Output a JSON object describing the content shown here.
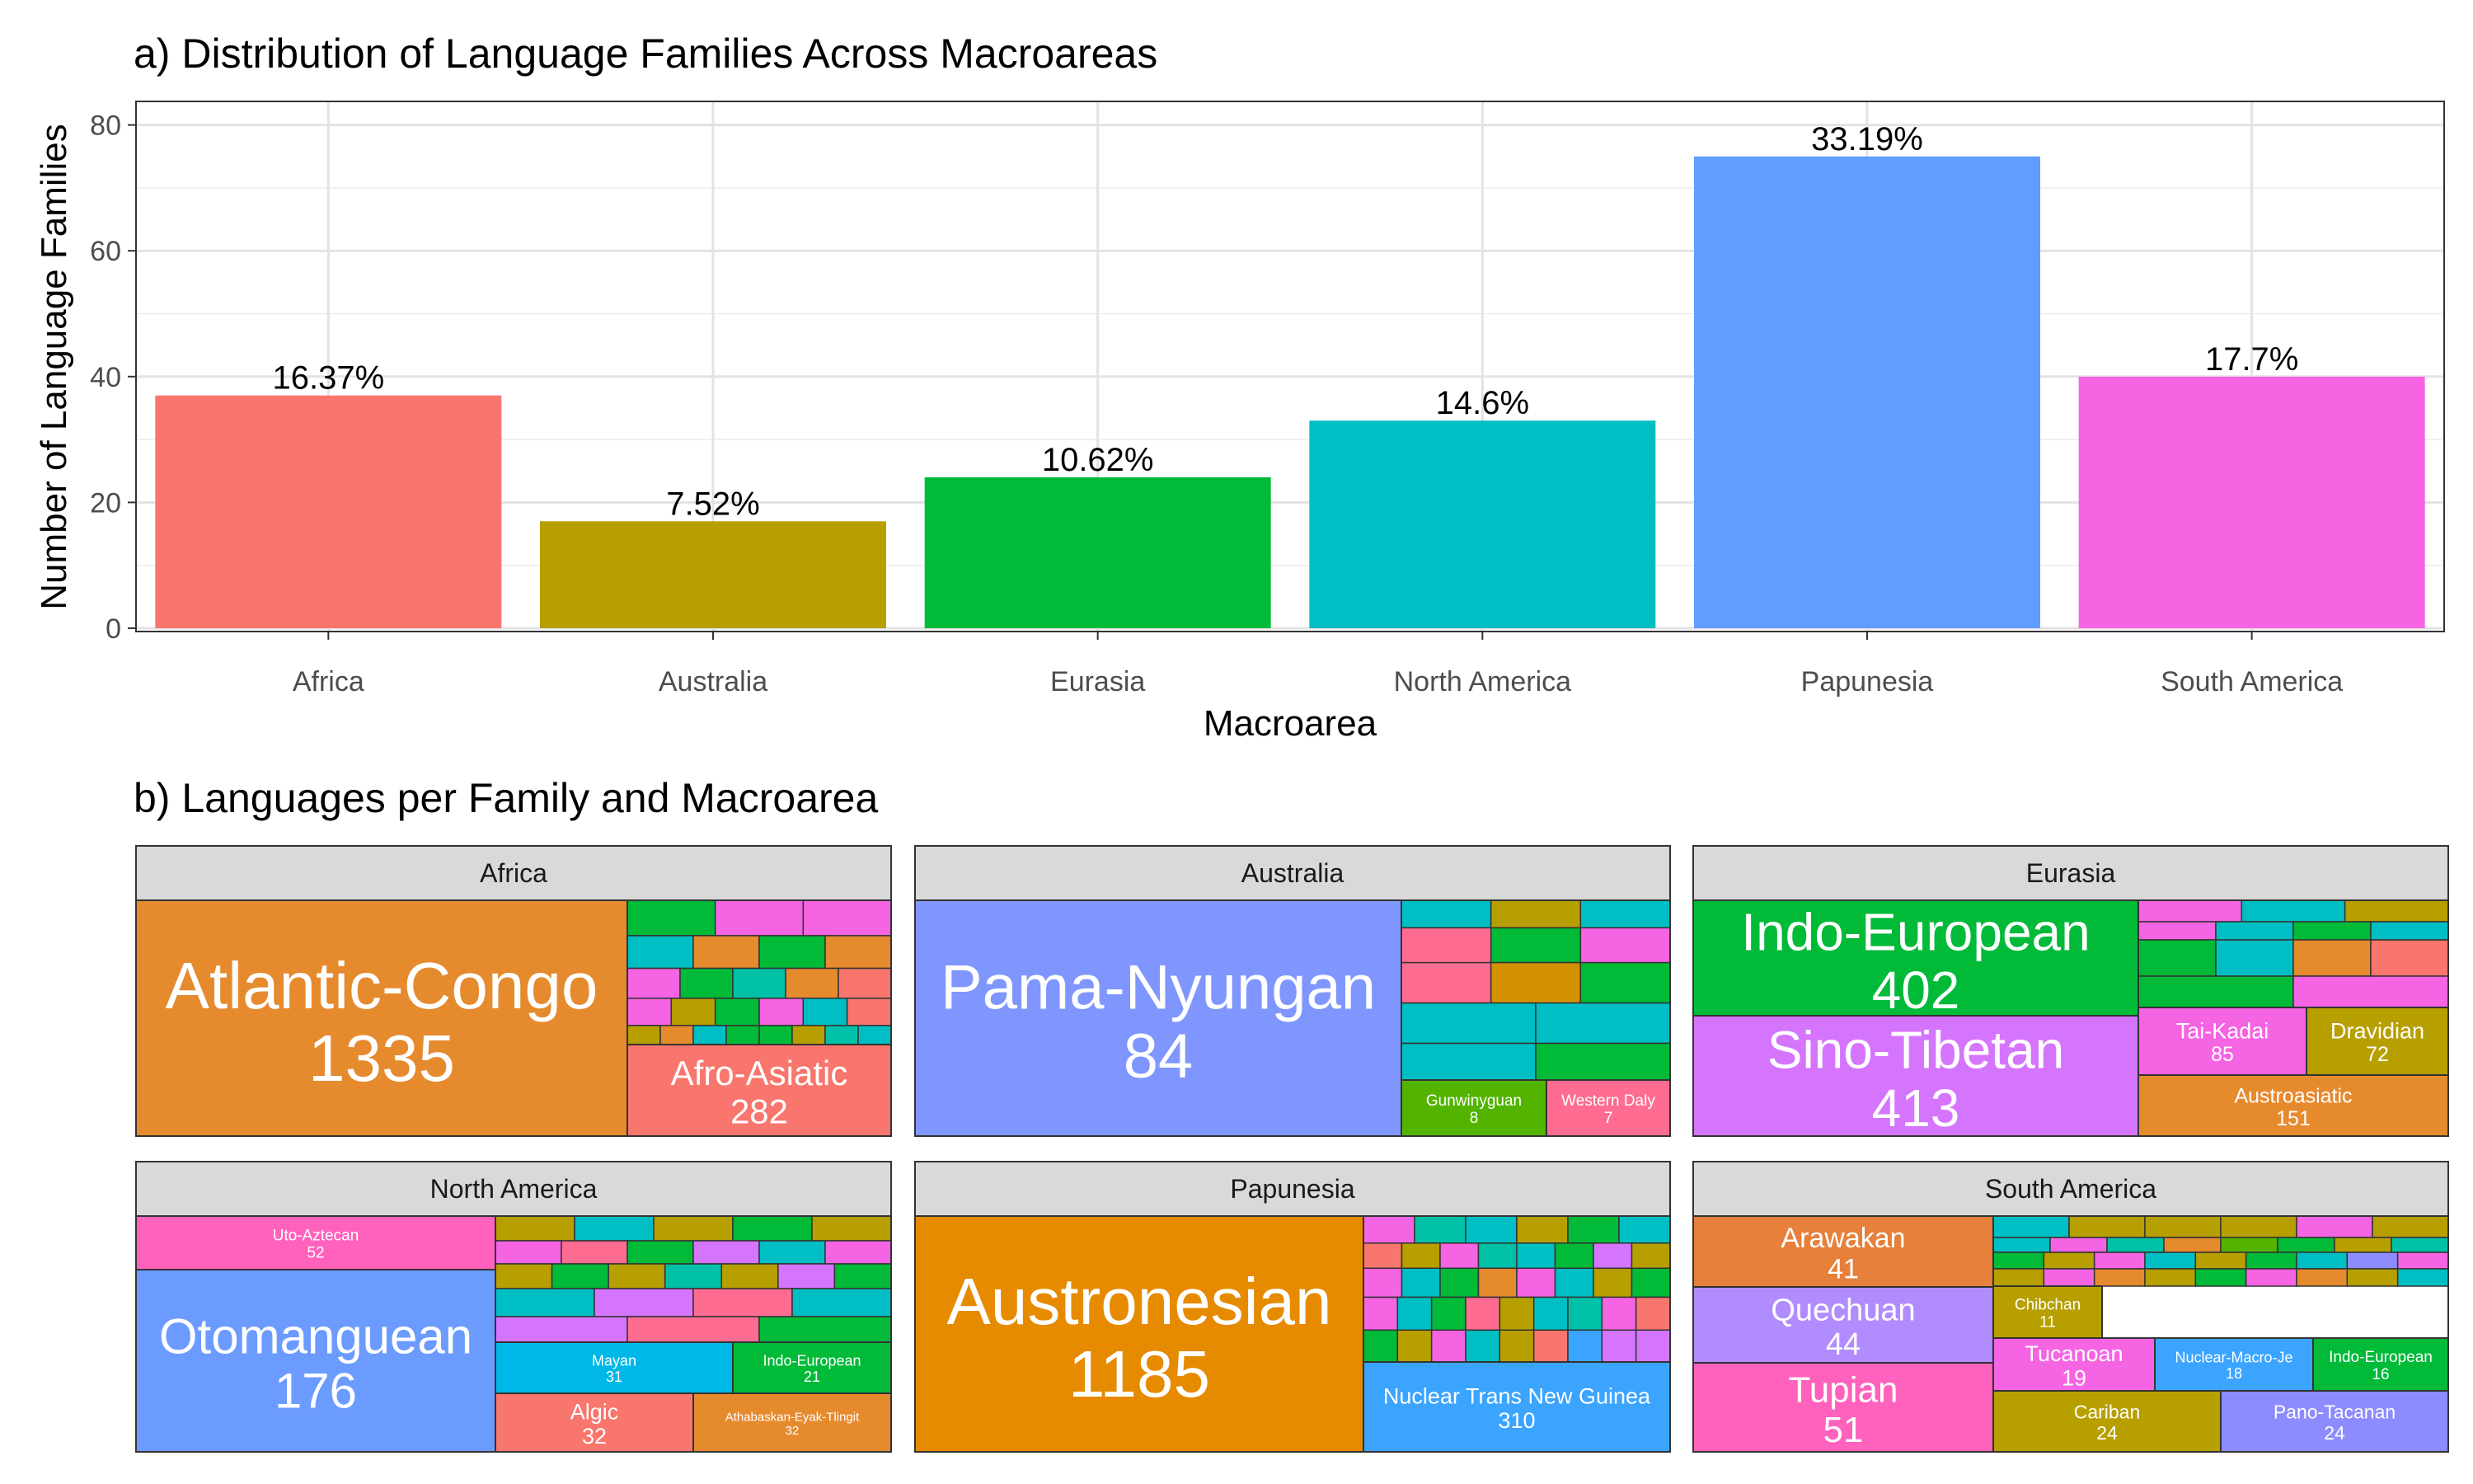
{
  "chart_data": [
    {
      "type": "bar",
      "title": "a) Distribution of Language Families Across Macroareas",
      "xlabel": "Macroarea",
      "ylabel": "Number of Language Families",
      "ylim": [
        0,
        84
      ],
      "yticks": [
        "0",
        "20",
        "40",
        "60",
        "80"
      ],
      "grid": true,
      "categories": [
        "Africa",
        "Australia",
        "Eurasia",
        "North America",
        "Papunesia",
        "South America"
      ],
      "values": [
        37,
        17,
        24,
        33,
        75,
        40
      ],
      "labels": [
        "16.37%",
        "7.52%",
        "10.62%",
        "14.6%",
        "33.19%",
        "17.7%"
      ],
      "colors": [
        "#F8766D",
        "#B79F00",
        "#00BA38",
        "#00BFC4",
        "#619CFF",
        "#F564E3"
      ]
    },
    {
      "type": "treemap",
      "title": "b) Languages per Family and Macroarea",
      "panels": [
        {
          "name": "Africa",
          "labeled": [
            {
              "name": "Atlantic-Congo",
              "value": "1335",
              "color": "#E68A2E"
            },
            {
              "name": "Afro-Asiatic",
              "value": "282",
              "color": "#F8766D"
            }
          ],
          "small_colors": [
            "#00BA38",
            "#F564E3",
            "#F564E3",
            "#00BFC4",
            "#E68A2E",
            "#00BA38",
            "#E68A2E",
            "#F564E3",
            "#00BA38",
            "#00C1A7",
            "#E68A2E",
            "#F8766D",
            "#F564E3",
            "#B79F00",
            "#00BA38",
            "#F564E3",
            "#00BFC4",
            "#F8766D",
            "#B79F00",
            "#E68A2E",
            "#00BFC4",
            "#00BA38",
            "#00BA38",
            "#B79F00",
            "#00C1A7",
            "#00BFC4",
            "#00BFC4",
            "#B79F00"
          ]
        },
        {
          "name": "Australia",
          "labeled": [
            {
              "name": "Pama-Nyungan",
              "value": "84",
              "color": "#7F96FF"
            },
            {
              "name": "Gunwinyguan",
              "value": "8",
              "color": "#53B400"
            },
            {
              "name": "Western Daly",
              "value": "7",
              "color": "#FF6C91"
            }
          ],
          "small_colors": [
            "#00BFC4",
            "#B79F00",
            "#00BFC4",
            "#FF6C91",
            "#00BA38",
            "#F564E3",
            "#FF6C91",
            "#D39200",
            "#00BA38",
            "#00BFC4",
            "#00BFC4",
            "#00BFC4",
            "#00BA38"
          ]
        },
        {
          "name": "Eurasia",
          "labeled": [
            {
              "name": "Indo-European",
              "value": "402",
              "color": "#00BA38"
            },
            {
              "name": "Sino-Tibetan",
              "value": "413",
              "color": "#D575FE"
            },
            {
              "name": "Tai-Kadai",
              "value": "85",
              "color": "#F564E3"
            },
            {
              "name": "Dravidian",
              "value": "72",
              "color": "#B79F00"
            },
            {
              "name": "Austroasiatic",
              "value": "151",
              "color": "#E68A2E"
            }
          ],
          "small_colors": [
            "#F564E3",
            "#00BFC4",
            "#B79F00",
            "#F564E3",
            "#00BFC4",
            "#00BA38",
            "#00BFC4",
            "#00BA38",
            "#00BFC4",
            "#E68A2E",
            "#F8766D",
            "#00BA38",
            "#F564E3",
            "#B79F00",
            "#00BFC4",
            "#00BA38",
            "#00BFC4",
            "#E68A2E"
          ]
        },
        {
          "name": "North America",
          "labeled": [
            {
              "name": "Uto-Aztecan",
              "value": "52",
              "color": "#FF62BC"
            },
            {
              "name": "Otomanguean",
              "value": "176",
              "color": "#6C9BFF"
            },
            {
              "name": "Mayan",
              "value": "31",
              "color": "#00B8E7"
            },
            {
              "name": "Indo-European",
              "value": "21",
              "color": "#00BA38"
            },
            {
              "name": "Algic",
              "value": "32",
              "color": "#F8766D"
            },
            {
              "name": "Athabaskan-Eyak-Tlingit",
              "value": "32",
              "color": "#E68A2E"
            }
          ],
          "small_colors": [
            "#B79F00",
            "#00BFC4",
            "#B79F00",
            "#00BA38",
            "#B79F00",
            "#F564E3",
            "#FF6C91",
            "#00BA38",
            "#D575FE",
            "#00BFC4",
            "#F564E3",
            "#B79F00",
            "#00BA38",
            "#B79F00",
            "#00C1A7",
            "#B79F00",
            "#D575FE",
            "#00BA38",
            "#00BFC4",
            "#D575FE",
            "#FF6C91",
            "#00BFC4",
            "#D575FE",
            "#FF6C91",
            "#00BA38"
          ]
        },
        {
          "name": "Papunesia",
          "labeled": [
            {
              "name": "Austronesian",
              "value": "1185",
              "color": "#E68A00"
            },
            {
              "name": "Nuclear Trans New Guinea",
              "value": "310",
              "color": "#3BA4FF"
            }
          ],
          "small_colors": [
            "#F564E3",
            "#00C1A7",
            "#00BFC4",
            "#B79F00",
            "#00BA38",
            "#00BFC4",
            "#F8766D",
            "#B79F00",
            "#F564E3",
            "#00C1A7",
            "#00BFC4",
            "#00BA38",
            "#D575FE",
            "#B79F00",
            "#F564E3",
            "#00BFC4",
            "#00BA38",
            "#E68A2E",
            "#F564E3",
            "#00BFC4",
            "#B79F00",
            "#00BA38",
            "#F564E3",
            "#00BFC4",
            "#00BA38",
            "#FF6C91",
            "#B79F00",
            "#00BFC4",
            "#00C1A7",
            "#F564E3",
            "#F8766D",
            "#00BA38",
            "#B79F00",
            "#F564E3",
            "#00BFC4",
            "#B79F00",
            "#F8766D",
            "#3BA4FF",
            "#D575FE",
            "#D575FE"
          ]
        },
        {
          "name": "South America",
          "labeled": [
            {
              "name": "Arawakan",
              "value": "41",
              "color": "#E6803A"
            },
            {
              "name": "Quechuan",
              "value": "44",
              "color": "#B18CFF"
            },
            {
              "name": "Tupian",
              "value": "51",
              "color": "#FF62BC"
            },
            {
              "name": "Chibchan",
              "value": "11",
              "color": "#B79F00"
            },
            {
              "name": "Tucanoan",
              "value": "19",
              "color": "#F564E3"
            },
            {
              "name": "Nuclear-Macro-Je",
              "value": "18",
              "color": "#3BA4FF"
            },
            {
              "name": "Indo-European",
              "value": "16",
              "color": "#00BA38"
            },
            {
              "name": "Cariban",
              "value": "24",
              "color": "#B79F00"
            },
            {
              "name": "Pano-Tacanan",
              "value": "24",
              "color": "#8C8CFF"
            }
          ],
          "small_colors": [
            "#00BFC4",
            "#B79F00",
            "#B79F00",
            "#B79F00",
            "#F564E3",
            "#B79F00",
            "#00BFC4",
            "#F564E3",
            "#00C1A7",
            "#E68A2E",
            "#53B400",
            "#00BA38",
            "#B79F00",
            "#00C1A7",
            "#00BA38",
            "#B79F00",
            "#F564E3",
            "#00BFC4",
            "#B79F00",
            "#00BA38",
            "#00BFC4",
            "#8C8CFF",
            "#F564E3",
            "#B79F00",
            "#F564E3",
            "#E68A2E",
            "#B79F00",
            "#00BA38",
            "#F564E3",
            "#E68A2E",
            "#B79F00",
            "#00BFC4"
          ]
        }
      ]
    }
  ]
}
